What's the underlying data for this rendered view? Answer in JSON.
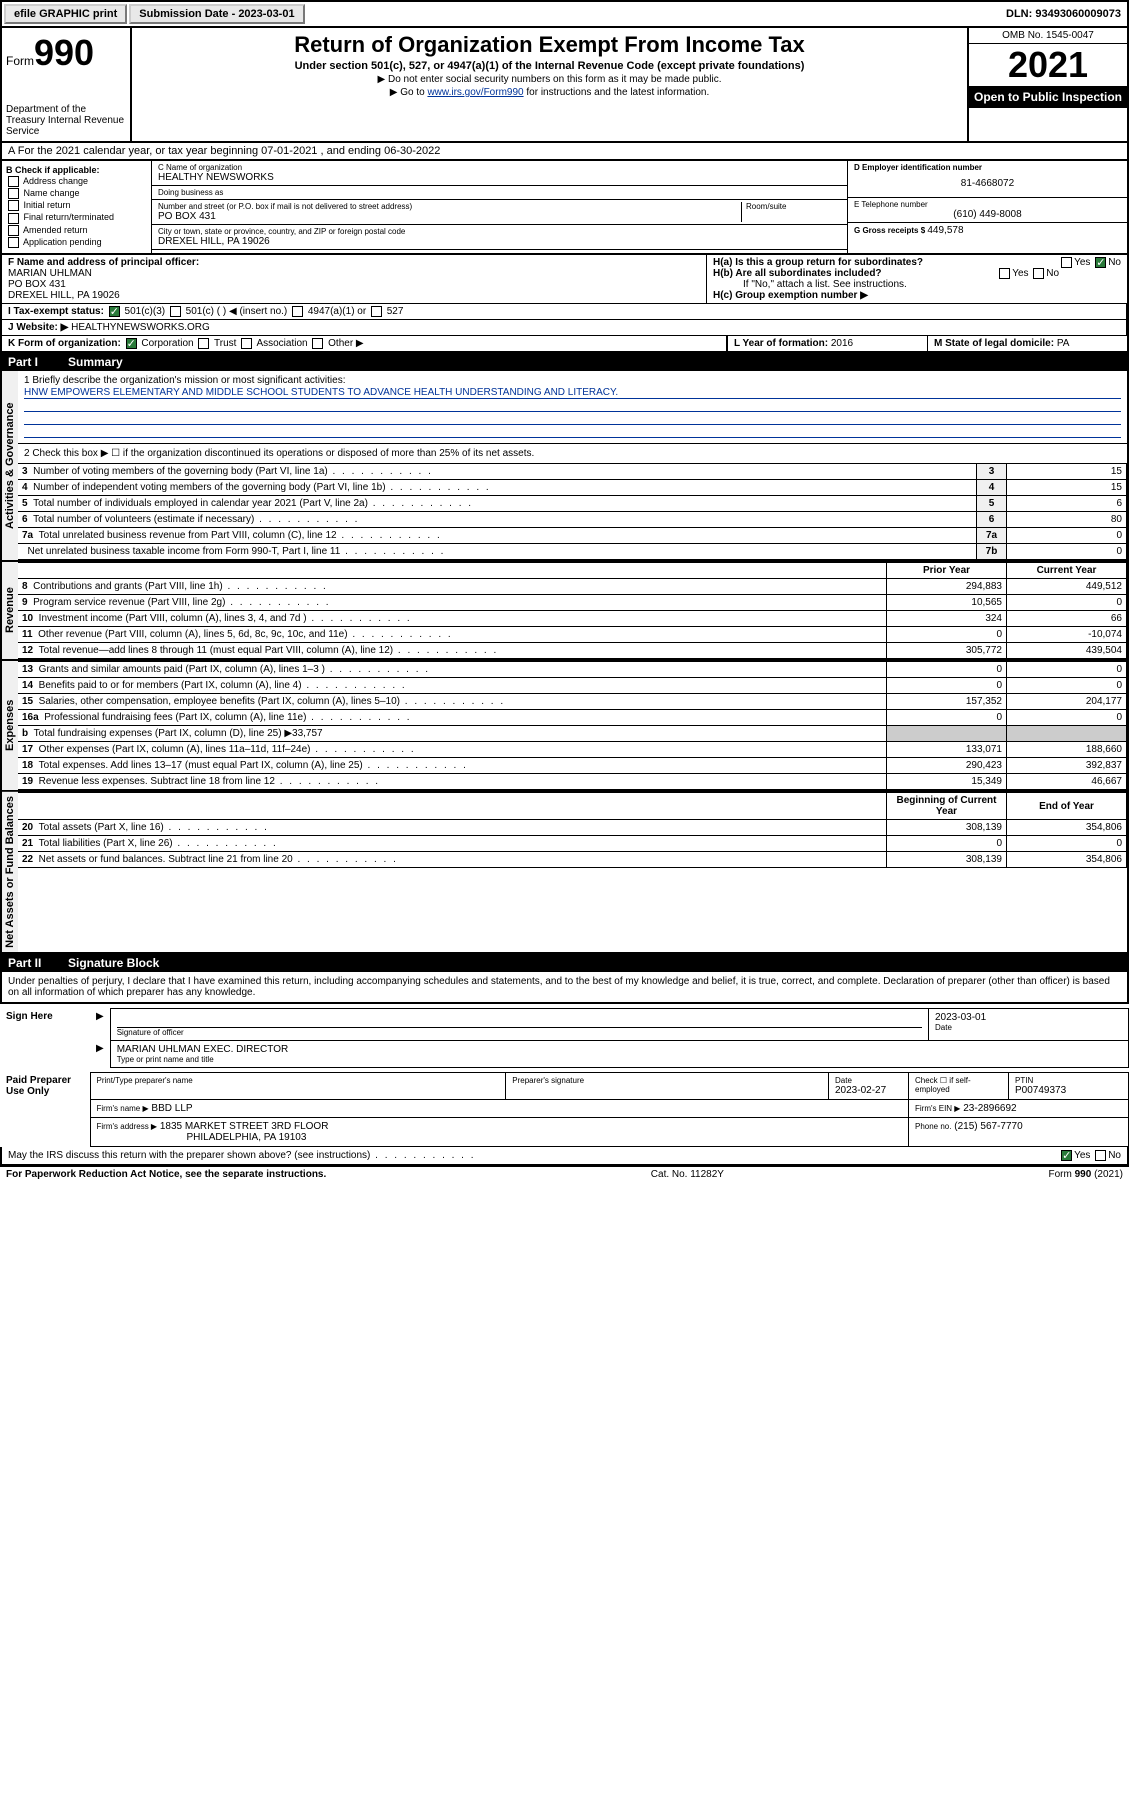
{
  "topbar": {
    "efile_btn": "efile GRAPHIC print",
    "sub_date_lbl": "Submission Date - 2023-03-01",
    "dln": "DLN: 93493060009073"
  },
  "header": {
    "form_word": "Form",
    "form_num": "990",
    "dept": "Department of the Treasury Internal Revenue Service",
    "title": "Return of Organization Exempt From Income Tax",
    "sub": "Under section 501(c), 527, or 4947(a)(1) of the Internal Revenue Code (except private foundations)",
    "inst1": "▶ Do not enter social security numbers on this form as it may be made public.",
    "inst2_pre": "▶ Go to ",
    "inst2_link": "www.irs.gov/Form990",
    "inst2_post": " for instructions and the latest information.",
    "omb": "OMB No. 1545-0047",
    "year": "2021",
    "open_pub": "Open to Public Inspection"
  },
  "row_a": "A For the 2021 calendar year, or tax year beginning 07-01-2021   , and ending 06-30-2022",
  "col_b": {
    "hdr": "B Check if applicable:",
    "opts": [
      "Address change",
      "Name change",
      "Initial return",
      "Final return/terminated",
      "Amended return",
      "Application pending"
    ]
  },
  "col_c": {
    "name_lbl": "C Name of organization",
    "name": "HEALTHY NEWSWORKS",
    "dba_lbl": "Doing business as",
    "dba": "",
    "addr_lbl": "Number and street (or P.O. box if mail is not delivered to street address)",
    "room_lbl": "Room/suite",
    "addr": "PO BOX 431",
    "city_lbl": "City or town, state or province, country, and ZIP or foreign postal code",
    "city": "DREXEL HILL, PA  19026"
  },
  "col_d": {
    "ein_lbl": "D Employer identification number",
    "ein": "81-4668072",
    "tel_lbl": "E Telephone number",
    "tel": "(610) 449-8008",
    "gross_lbl": "G Gross receipts $ ",
    "gross": "449,578"
  },
  "section_f": {
    "lbl": "F Name and address of principal officer:",
    "name": "MARIAN UHLMAN",
    "addr1": "PO BOX 431",
    "addr2": "DREXEL HILL, PA  19026"
  },
  "section_h": {
    "a_lbl": "H(a)  Is this a group return for subordinates?",
    "b_lbl": "H(b)  Are all subordinates included?",
    "b_note": "If \"No,\" attach a list. See instructions.",
    "c_lbl": "H(c)  Group exemption number ▶"
  },
  "section_i": {
    "lbl": "I   Tax-exempt status:",
    "opt1": "501(c)(3)",
    "opt2": "501(c) (  ) ◀ (insert no.)",
    "opt3": "4947(a)(1) or",
    "opt4": "527"
  },
  "section_j": {
    "lbl": "J   Website: ▶",
    "val": " HEALTHYNEWSWORKS.ORG"
  },
  "section_k": {
    "lbl": "K Form of organization:",
    "opts": [
      "Corporation",
      "Trust",
      "Association",
      "Other ▶"
    ]
  },
  "section_l": {
    "lbl": "L Year of formation: ",
    "val": "2016"
  },
  "section_m": {
    "lbl": "M State of legal domicile: ",
    "val": "PA"
  },
  "part1": {
    "num": "Part I",
    "title": "Summary"
  },
  "mission": {
    "lbl": "1   Briefly describe the organization's mission or most significant activities:",
    "text": "HNW EMPOWERS ELEMENTARY AND MIDDLE SCHOOL STUDENTS TO ADVANCE HEALTH UNDERSTANDING AND LITERACY."
  },
  "line2": "2   Check this box ▶ ☐  if the organization discontinued its operations or disposed of more than 25% of its net assets.",
  "sections": {
    "gov": "Activities & Governance",
    "rev": "Revenue",
    "exp": "Expenses",
    "net": "Net Assets or Fund Balances"
  },
  "gov_rows": [
    {
      "n": "3",
      "d": "Number of voting members of the governing body (Part VI, line 1a)",
      "k": "3",
      "v": "15"
    },
    {
      "n": "4",
      "d": "Number of independent voting members of the governing body (Part VI, line 1b)",
      "k": "4",
      "v": "15"
    },
    {
      "n": "5",
      "d": "Total number of individuals employed in calendar year 2021 (Part V, line 2a)",
      "k": "5",
      "v": "6"
    },
    {
      "n": "6",
      "d": "Total number of volunteers (estimate if necessary)",
      "k": "6",
      "v": "80"
    },
    {
      "n": "7a",
      "d": "Total unrelated business revenue from Part VIII, column (C), line 12",
      "k": "7a",
      "v": "0"
    },
    {
      "n": "",
      "d": "Net unrelated business taxable income from Form 990-T, Part I, line 11",
      "k": "7b",
      "v": "0"
    }
  ],
  "two_col_hdr": {
    "py": "Prior Year",
    "cy": "Current Year"
  },
  "rev_rows": [
    {
      "n": "8",
      "d": "Contributions and grants (Part VIII, line 1h)",
      "py": "294,883",
      "cy": "449,512"
    },
    {
      "n": "9",
      "d": "Program service revenue (Part VIII, line 2g)",
      "py": "10,565",
      "cy": "0"
    },
    {
      "n": "10",
      "d": "Investment income (Part VIII, column (A), lines 3, 4, and 7d )",
      "py": "324",
      "cy": "66"
    },
    {
      "n": "11",
      "d": "Other revenue (Part VIII, column (A), lines 5, 6d, 8c, 9c, 10c, and 11e)",
      "py": "0",
      "cy": "-10,074"
    },
    {
      "n": "12",
      "d": "Total revenue—add lines 8 through 11 (must equal Part VIII, column (A), line 12)",
      "py": "305,772",
      "cy": "439,504"
    }
  ],
  "exp_rows": [
    {
      "n": "13",
      "d": "Grants and similar amounts paid (Part IX, column (A), lines 1–3 )",
      "py": "0",
      "cy": "0"
    },
    {
      "n": "14",
      "d": "Benefits paid to or for members (Part IX, column (A), line 4)",
      "py": "0",
      "cy": "0"
    },
    {
      "n": "15",
      "d": "Salaries, other compensation, employee benefits (Part IX, column (A), lines 5–10)",
      "py": "157,352",
      "cy": "204,177"
    },
    {
      "n": "16a",
      "d": "Professional fundraising fees (Part IX, column (A), line 11e)",
      "py": "0",
      "cy": "0"
    }
  ],
  "exp_16b": {
    "n": "b",
    "d": "Total fundraising expenses (Part IX, column (D), line 25) ▶33,757"
  },
  "exp_rows2": [
    {
      "n": "17",
      "d": "Other expenses (Part IX, column (A), lines 11a–11d, 11f–24e)",
      "py": "133,071",
      "cy": "188,660"
    },
    {
      "n": "18",
      "d": "Total expenses. Add lines 13–17 (must equal Part IX, column (A), line 25)",
      "py": "290,423",
      "cy": "392,837"
    },
    {
      "n": "19",
      "d": "Revenue less expenses. Subtract line 18 from line 12",
      "py": "15,349",
      "cy": "46,667"
    }
  ],
  "net_hdr": {
    "b": "Beginning of Current Year",
    "e": "End of Year"
  },
  "net_rows": [
    {
      "n": "20",
      "d": "Total assets (Part X, line 16)",
      "py": "308,139",
      "cy": "354,806"
    },
    {
      "n": "21",
      "d": "Total liabilities (Part X, line 26)",
      "py": "0",
      "cy": "0"
    },
    {
      "n": "22",
      "d": "Net assets or fund balances. Subtract line 21 from line 20",
      "py": "308,139",
      "cy": "354,806"
    }
  ],
  "part2": {
    "num": "Part II",
    "title": "Signature Block"
  },
  "sig_decl": "Under penalties of perjury, I declare that I have examined this return, including accompanying schedules and statements, and to the best of my knowledge and belief, it is true, correct, and complete. Declaration of preparer (other than officer) is based on all information of which preparer has any knowledge.",
  "sign_here": "Sign Here",
  "sig_officer_lbl": "Signature of officer",
  "sig_date": "2023-03-01",
  "sig_date_lbl": "Date",
  "sig_name": "MARIAN UHLMAN  EXEC. DIRECTOR",
  "sig_name_lbl": "Type or print name and title",
  "paid_prep": "Paid Preparer Use Only",
  "prep": {
    "name_lbl": "Print/Type preparer's name",
    "sig_lbl": "Preparer's signature",
    "date_lbl": "Date",
    "date": "2023-02-27",
    "check_lbl": "Check ☐ if self-employed",
    "ptin_lbl": "PTIN",
    "ptin": "P00749373",
    "firm_name_lbl": "Firm's name   ▶",
    "firm_name": "BBD LLP",
    "firm_ein_lbl": "Firm's EIN ▶",
    "firm_ein": "23-2896692",
    "firm_addr_lbl": "Firm's address ▶",
    "firm_addr": "1835 MARKET STREET 3RD FLOOR",
    "firm_city": "PHILADELPHIA, PA  19103",
    "phone_lbl": "Phone no.",
    "phone": "(215) 567-7770"
  },
  "may_irs": "May the IRS discuss this return with the preparer shown above? (see instructions)",
  "footer": {
    "left": "For Paperwork Reduction Act Notice, see the separate instructions.",
    "mid": "Cat. No. 11282Y",
    "right": "Form 990 (2021)"
  },
  "yes": "Yes",
  "no": "No"
}
